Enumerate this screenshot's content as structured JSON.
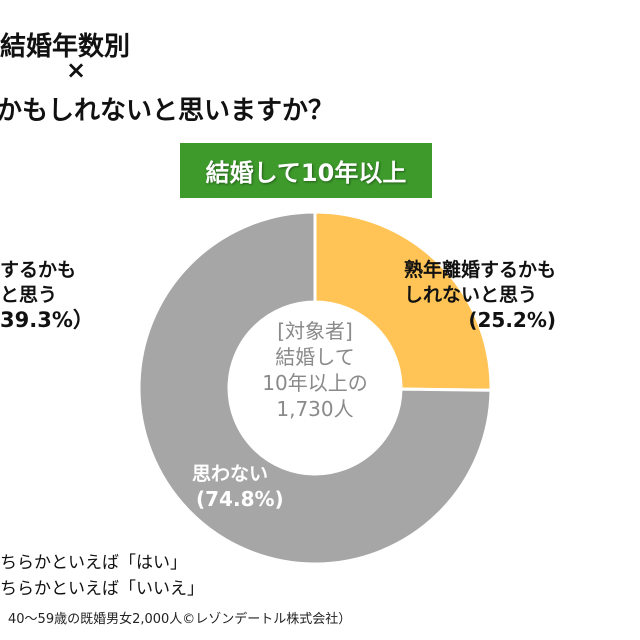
{
  "title": {
    "line1": "結婚年数別",
    "cross": "×",
    "line2": "かもしれないと思いますか？"
  },
  "chart_data": {
    "type": "pie",
    "donut": true,
    "group_label": "結婚して10年以上",
    "center_text": [
      "[対象者]",
      "結婚して",
      "10年以上の",
      "1,730人"
    ],
    "slices": [
      {
        "label": "熟年離婚するかもしれないと思う",
        "value": 25.2,
        "value_label": "(25.2%)",
        "color": "#ffc455"
      },
      {
        "label": "思わない",
        "value": 74.8,
        "value_label": "(74.8%)",
        "color": "#a6a6a6"
      }
    ],
    "left_partial_label": {
      "line1": "するかも",
      "line2": "と思う",
      "value_label": "39.3%）"
    }
  },
  "labels": {
    "yes_line1": "熟年離婚するかも",
    "yes_line2": "しれないと思う"
  },
  "legend": [
    "ちらかといえば「はい」",
    "ちらかといえば「いいえ」"
  ],
  "source": "40～59歳の既婚男女2,000人©レゾンデートル株式会社）"
}
